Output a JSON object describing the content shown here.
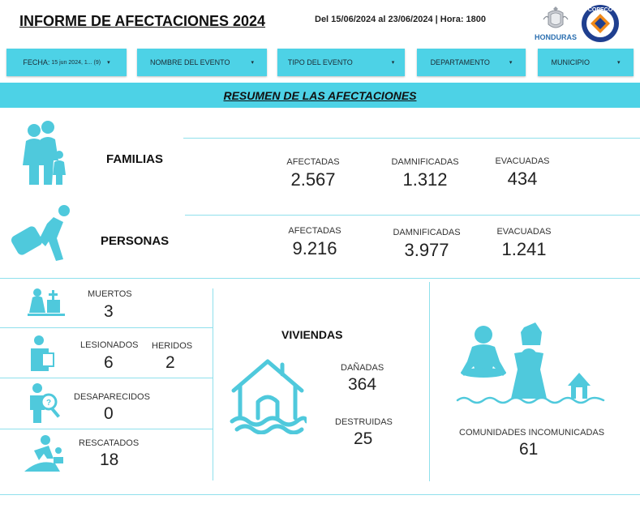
{
  "header": {
    "title": "INFORME DE AFECTACIONES 2024",
    "date_range": "Del 15/06/2024 al 23/06/2024 | Hora: 1800",
    "logo_honduras": "HONDURAS",
    "logo_copeco": "COPECO"
  },
  "filters": {
    "fecha_label": "FECHA:",
    "fecha_value": "15 jun 2024, 1... (9)",
    "evento": "NOMBRE DEL EVENTO",
    "tipo": "TIPO DEL EVENTO",
    "departamento": "DEPARTAMENTO",
    "municipio": "MUNICIPIO"
  },
  "banner": "RESUMEN DE LAS AFECTACIONES",
  "familias": {
    "label": "FAMILIAS",
    "afectadas_label": "AFECTADAS",
    "afectadas": "2.567",
    "damnificadas_label": "DAMNIFICADAS",
    "damnificadas": "1.312",
    "evacuadas_label": "EVACUADAS",
    "evacuadas": "434"
  },
  "personas": {
    "label": "PERSONAS",
    "afectadas_label": "AFECTADAS",
    "afectadas": "9.216",
    "damnificadas_label": "DAMNIFICADAS",
    "damnificadas": "3.977",
    "evacuadas_label": "EVACUADAS",
    "evacuadas": "1.241"
  },
  "muertos": {
    "label": "MUERTOS",
    "value": "3"
  },
  "lesionados": {
    "label": "LESIONADOS",
    "value": "6"
  },
  "heridos": {
    "label": "HERIDOS",
    "value": "2"
  },
  "desaparecidos": {
    "label": "DESAPARECIDOS",
    "value": "0"
  },
  "rescatados": {
    "label": "RESCATADOS",
    "value": "18"
  },
  "viviendas": {
    "label": "VIVIENDAS",
    "danadas_label": "DAÑADAS",
    "danadas": "364",
    "destruidas_label": "DESTRUIDAS",
    "destruidas": "25"
  },
  "comunidades": {
    "label": "COMUNIDADES INCOMUNICADAS",
    "value": "61"
  },
  "colors": {
    "accent": "#4dd2e6",
    "icon": "#4fc9dc",
    "divider": "#8fe0ec"
  },
  "icons": [
    "family-icon",
    "evacuee-icon",
    "death-icon",
    "injured-icon",
    "missing-person-icon",
    "rescue-icon",
    "flooded-house-icon",
    "isolated-community-icon",
    "honduras-emblem-icon",
    "copeco-logo-icon",
    "dropdown-caret-icon"
  ]
}
